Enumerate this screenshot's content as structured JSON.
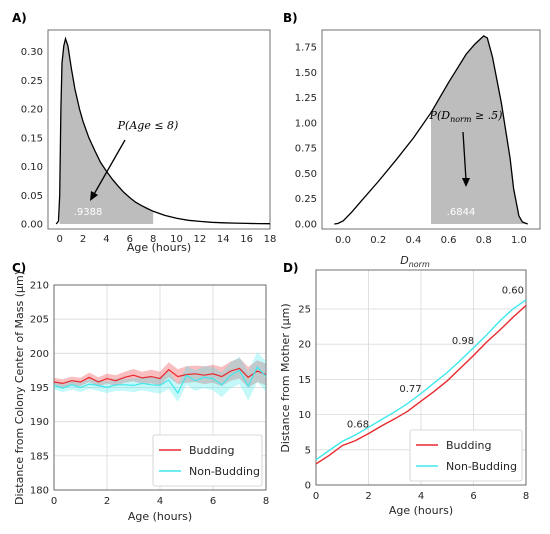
{
  "panels": {
    "a": {
      "label": "A)",
      "xlabel": "Age (hours)",
      "annotation": "P(Age ≤ 8)",
      "shaded_value": ".9388",
      "xticks": [
        "0",
        "2",
        "4",
        "6",
        "8",
        "10",
        "12",
        "14",
        "16",
        "18"
      ],
      "yticks": [
        "0.00",
        "0.05",
        "0.10",
        "0.15",
        "0.20",
        "0.25",
        "0.30"
      ]
    },
    "b": {
      "label": "B)",
      "xlabel": "D_norm",
      "annotation": "P(D_norm ≥ .5)",
      "shaded_value": ".6844",
      "xticks": [
        "0.0",
        "0.2",
        "0.4",
        "0.6",
        "0.8",
        "1.0"
      ],
      "yticks": [
        "0.00",
        "0.25",
        "0.50",
        "0.75",
        "1.00",
        "1.25",
        "1.50",
        "1.75"
      ]
    },
    "c": {
      "label": "C)",
      "xlabel": "Age (hours)",
      "ylabel": "Distance from Colony Center of Mass (μm)",
      "xticks": [
        "0",
        "2",
        "4",
        "6",
        "8"
      ],
      "yticks": [
        "180",
        "185",
        "190",
        "195",
        "200",
        "205",
        "210"
      ],
      "legend": [
        "Budding",
        "Non-Budding"
      ]
    },
    "d": {
      "label": "D)",
      "xlabel": "Age (hours)",
      "ylabel": "Distance from Mother (μm)",
      "xticks": [
        "0",
        "2",
        "4",
        "6",
        "8"
      ],
      "yticks": [
        "0",
        "5",
        "10",
        "15",
        "20",
        "25"
      ],
      "legend": [
        "Budding",
        "Non-Budding"
      ],
      "correlations": [
        "0.68",
        "0.77",
        "0.98",
        "0.60"
      ]
    }
  },
  "colors": {
    "budding": "#e8292e",
    "non_budding": "#3ee8ec",
    "shade": "#bdbdbd"
  },
  "chart_data": [
    {
      "type": "area",
      "title": "",
      "xlabel": "Age (hours)",
      "ylabel": "",
      "xlim": [
        -1,
        18
      ],
      "ylim": [
        0,
        0.32
      ],
      "shaded_range": [
        0,
        8
      ],
      "shaded_probability": 0.9388,
      "x": [
        -0.3,
        -0.1,
        0.0,
        0.1,
        0.2,
        0.35,
        0.5,
        0.7,
        1.0,
        1.3,
        1.7,
        2.0,
        2.5,
        3.0,
        3.5,
        4.0,
        4.5,
        5.0,
        5.5,
        6.0,
        6.5,
        7.0,
        7.5,
        8.0,
        9.0,
        10.0,
        11.0,
        12.0,
        13.0,
        14.0,
        15.0,
        16.0,
        17.0,
        18.0
      ],
      "y": [
        0.0,
        0.005,
        0.05,
        0.2,
        0.28,
        0.31,
        0.322,
        0.31,
        0.27,
        0.235,
        0.2,
        0.178,
        0.15,
        0.128,
        0.107,
        0.092,
        0.078,
        0.066,
        0.055,
        0.046,
        0.038,
        0.032,
        0.027,
        0.022,
        0.015,
        0.01,
        0.0065,
        0.0045,
        0.003,
        0.002,
        0.0015,
        0.001,
        0.0007,
        0.0005
      ]
    },
    {
      "type": "area",
      "title": "",
      "xlabel": "D_norm",
      "ylabel": "",
      "xlim": [
        -0.12,
        1.12
      ],
      "ylim": [
        0,
        1.9
      ],
      "shaded_range": [
        0.5,
        1.05
      ],
      "shaded_probability": 0.6844,
      "x": [
        -0.05,
        -0.03,
        0.0,
        0.05,
        0.1,
        0.2,
        0.3,
        0.4,
        0.5,
        0.6,
        0.7,
        0.75,
        0.8,
        0.82,
        0.85,
        0.9,
        0.95,
        0.97,
        1.0,
        1.02,
        1.05
      ],
      "y": [
        0.0,
        0.005,
        0.03,
        0.12,
        0.22,
        0.42,
        0.63,
        0.85,
        1.1,
        1.4,
        1.68,
        1.78,
        1.86,
        1.84,
        1.65,
        1.2,
        0.65,
        0.35,
        0.08,
        0.02,
        0.0
      ]
    },
    {
      "type": "line",
      "title": "",
      "xlabel": "Age (hours)",
      "ylabel": "Distance from Colony Center of Mass (μm)",
      "xlim": [
        0,
        8
      ],
      "ylim": [
        180,
        210
      ],
      "grid": true,
      "legend": "bottom-right",
      "x": [
        0,
        0.33,
        0.67,
        1.0,
        1.33,
        1.67,
        2.0,
        2.33,
        2.67,
        3.0,
        3.33,
        3.67,
        4.0,
        4.33,
        4.67,
        5.0,
        5.33,
        5.67,
        6.0,
        6.33,
        6.67,
        7.0,
        7.33,
        7.67,
        8.0
      ],
      "series": [
        {
          "name": "Budding",
          "values": [
            195.8,
            195.6,
            196.0,
            195.8,
            196.5,
            195.8,
            196.3,
            196.0,
            196.5,
            196.8,
            196.4,
            196.6,
            196.3,
            197.6,
            196.6,
            196.9,
            197.0,
            196.8,
            197.0,
            196.6,
            197.4,
            197.8,
            196.5,
            197.4,
            196.9
          ],
          "band": [
            0.6,
            0.6,
            0.6,
            0.6,
            0.7,
            0.7,
            0.7,
            0.8,
            0.8,
            0.9,
            0.9,
            1.0,
            1.0,
            1.1,
            1.1,
            1.2,
            1.2,
            1.3,
            1.3,
            1.4,
            1.4,
            1.5,
            1.5,
            1.6,
            1.6
          ]
        },
        {
          "name": "Non-Budding",
          "values": [
            195.3,
            194.9,
            195.4,
            195.0,
            195.5,
            195.3,
            195.0,
            195.4,
            195.4,
            195.3,
            195.6,
            195.4,
            195.3,
            196.1,
            194.2,
            196.8,
            196.0,
            196.5,
            196.3,
            195.4,
            196.8,
            197.5,
            195.2,
            198.0,
            196.6
          ],
          "band": [
            0.6,
            0.6,
            0.7,
            0.7,
            0.7,
            0.8,
            0.8,
            0.9,
            0.9,
            1.0,
            1.0,
            1.1,
            1.2,
            1.3,
            1.3,
            1.4,
            1.5,
            1.6,
            1.7,
            1.8,
            1.9,
            2.0,
            2.1,
            2.2,
            2.2
          ]
        }
      ]
    },
    {
      "type": "line",
      "title": "",
      "xlabel": "Age (hours)",
      "ylabel": "Distance from Mother (μm)",
      "xlim": [
        0,
        8
      ],
      "ylim": [
        0,
        28
      ],
      "grid": true,
      "legend": "bottom-right",
      "x": [
        0,
        0.5,
        1.0,
        1.5,
        2.0,
        2.5,
        3.0,
        3.5,
        4.0,
        4.5,
        5.0,
        5.5,
        6.0,
        6.5,
        7.0,
        7.5,
        8.0
      ],
      "series": [
        {
          "name": "Budding",
          "values": [
            3.0,
            4.2,
            5.6,
            6.3,
            7.3,
            8.4,
            9.4,
            10.5,
            11.9,
            13.3,
            14.8,
            16.6,
            18.4,
            20.3,
            22.0,
            23.8,
            25.5
          ]
        },
        {
          "name": "Non-Budding",
          "values": [
            3.6,
            4.9,
            6.2,
            7.1,
            8.2,
            9.3,
            10.4,
            11.6,
            13.0,
            14.5,
            16.0,
            17.7,
            19.5,
            21.3,
            23.3,
            25.0,
            26.3
          ]
        }
      ],
      "annotations": [
        {
          "x": 1.6,
          "y": 8.2,
          "text": "0.68"
        },
        {
          "x": 3.6,
          "y": 13.2,
          "text": "0.77"
        },
        {
          "x": 5.6,
          "y": 20.0,
          "text": "0.98"
        },
        {
          "x": 7.5,
          "y": 27.2,
          "text": "0.60"
        }
      ]
    }
  ]
}
